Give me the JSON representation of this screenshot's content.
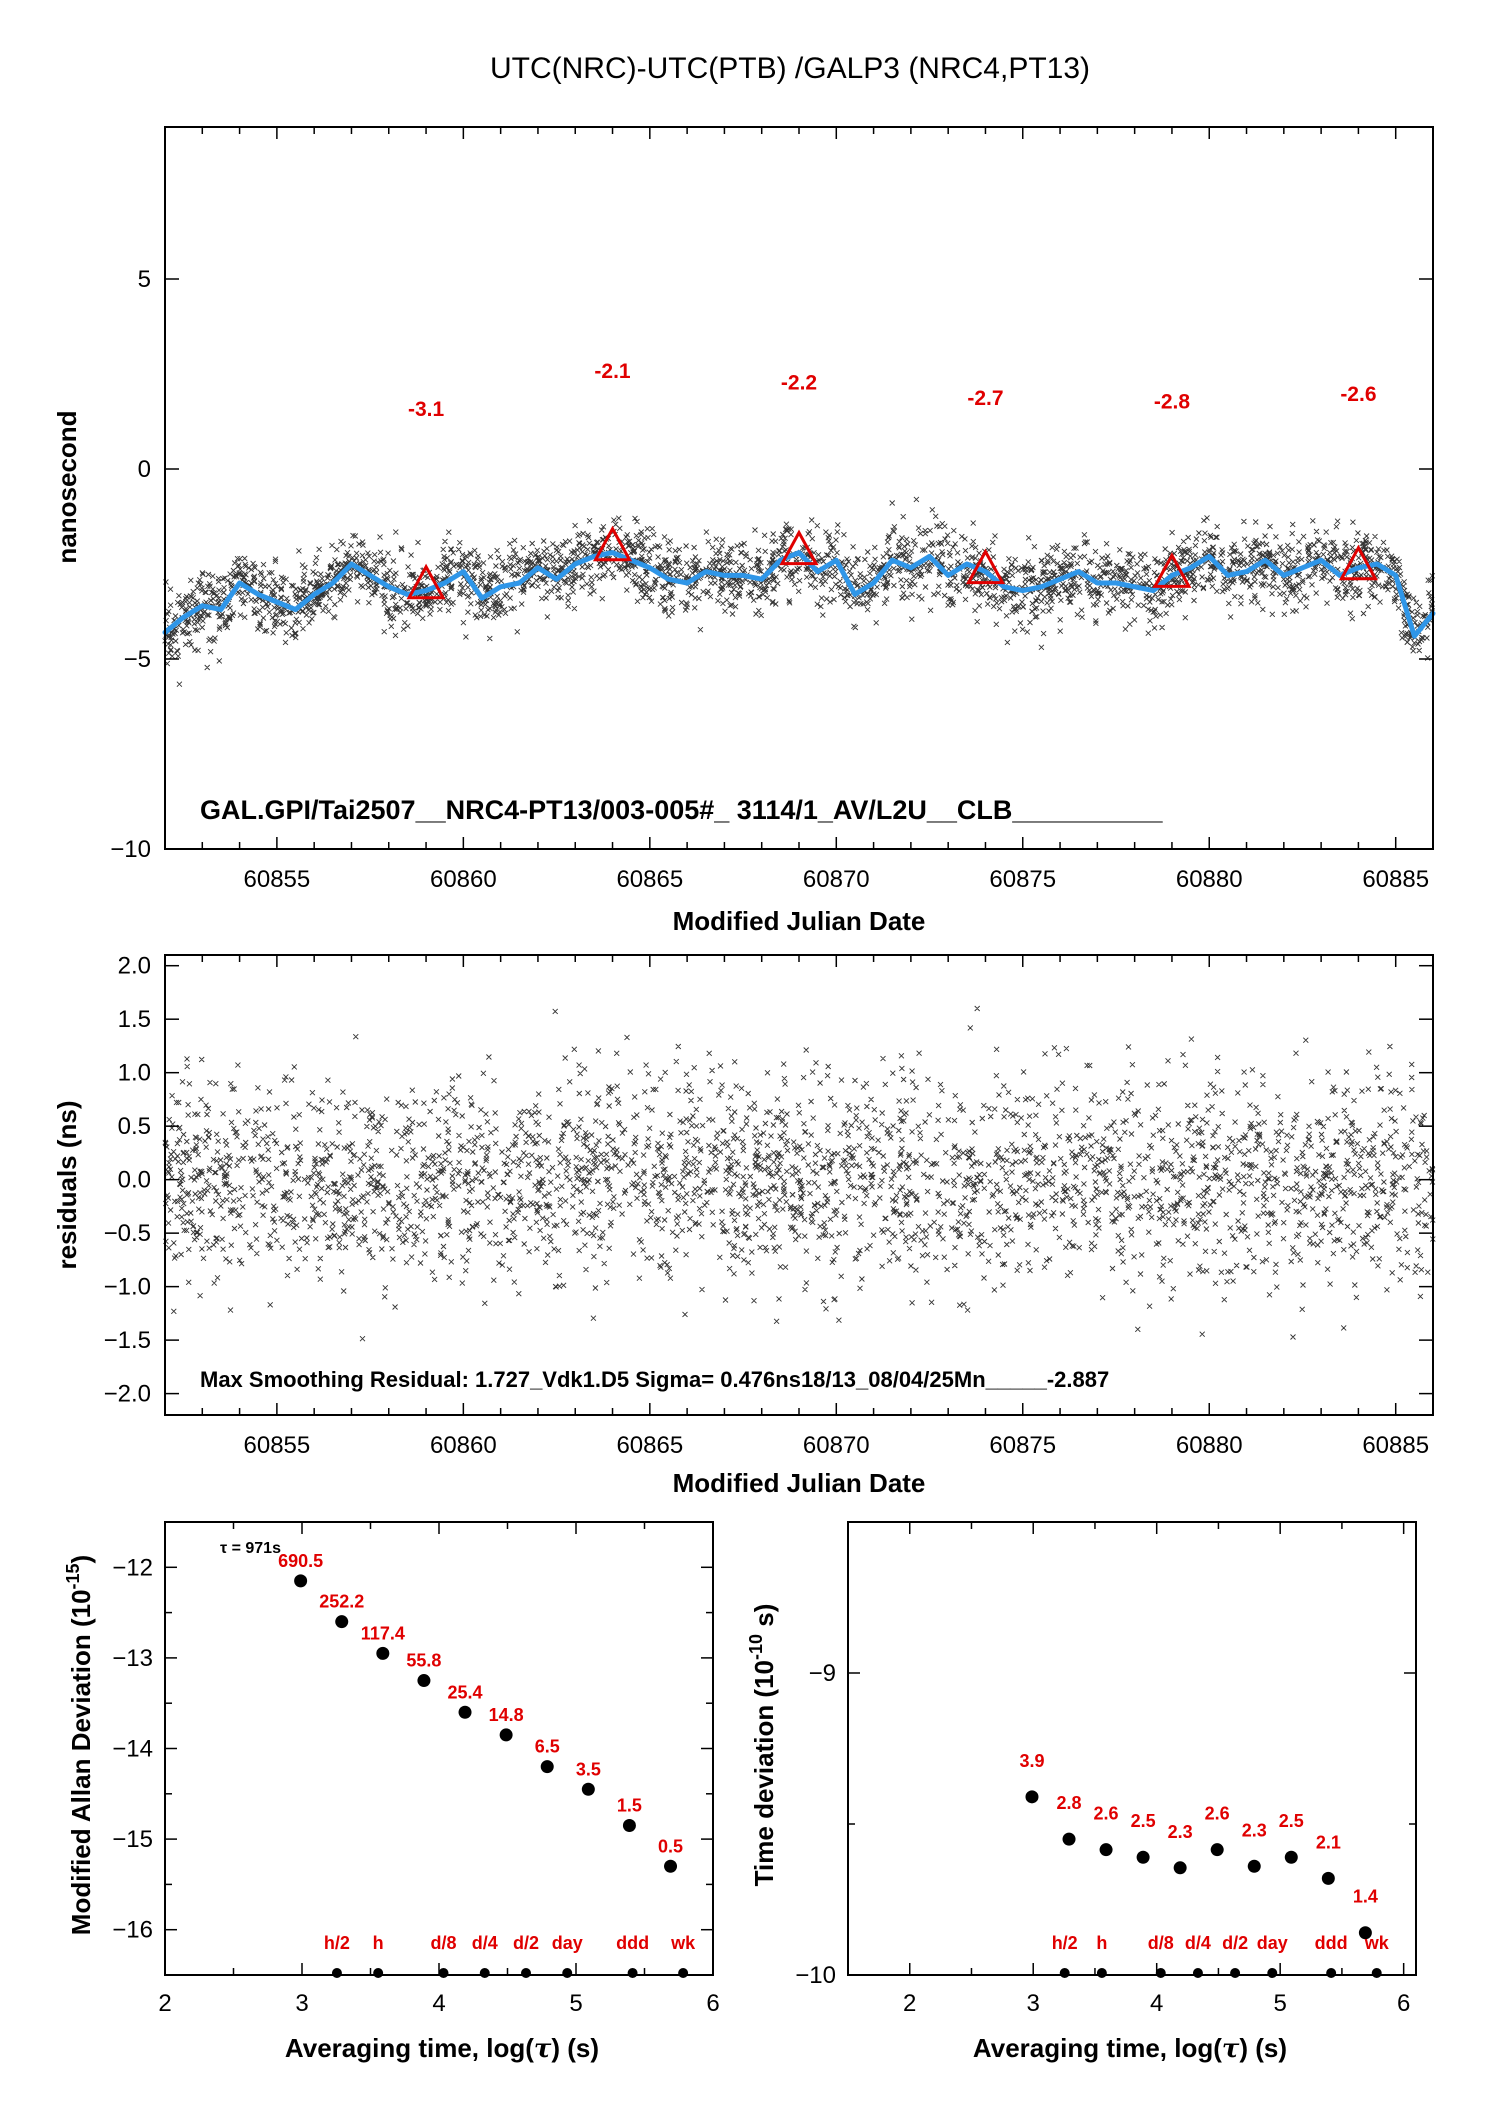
{
  "title": "UTC(NRC)-UTC(PTB)  /GALP3  (NRC4,PT13)",
  "colors": {
    "accent": "#e00000",
    "smooth": "#2f96e8",
    "points": "#000000"
  },
  "chart_data": [
    {
      "type": "scatter",
      "name": "time-series",
      "xlabel": "Modified Julian Date",
      "ylabel": "nanosecond",
      "xlim": [
        60852,
        60886
      ],
      "ylim": [
        -10,
        9
      ],
      "xticks": [
        "60855",
        "60860",
        "60865",
        "60870",
        "60875",
        "60880",
        "60885"
      ],
      "yticks": [
        "5",
        "0",
        "−5",
        "−10"
      ],
      "annotation": "GAL.GPI/Tai2507__NRC4-PT13/003-005#_  3114/1_AV/L2U__CLB__________",
      "scatter_summary": {
        "x_range": [
          60852,
          60886
        ],
        "y_center": -3.0,
        "spread_ns": 0.48
      },
      "smooth_line": {
        "x": [
          60852,
          60852.5,
          60853,
          60853.5,
          60854,
          60854.5,
          60855,
          60855.5,
          60856,
          60856.5,
          60857,
          60857.5,
          60858,
          60858.5,
          60859,
          60859.5,
          60860,
          60860.5,
          60861,
          60861.5,
          60862,
          60862.5,
          60863,
          60863.5,
          60864,
          60864.5,
          60865,
          60865.5,
          60866,
          60866.5,
          60867,
          60867.5,
          60868,
          60868.5,
          60869,
          60869.5,
          60870,
          60870.5,
          60871,
          60871.5,
          60872,
          60872.5,
          60873,
          60873.5,
          60874,
          60874.5,
          60875,
          60875.5,
          60876,
          60876.5,
          60877,
          60877.5,
          60878,
          60878.5,
          60879,
          60879.5,
          60880,
          60880.5,
          60881,
          60881.5,
          60882,
          60882.5,
          60883,
          60883.5,
          60884,
          60884.5,
          60885,
          60885.5,
          60886
        ],
        "y": [
          -4.3,
          -3.9,
          -3.6,
          -3.7,
          -3.0,
          -3.3,
          -3.5,
          -3.7,
          -3.3,
          -3.0,
          -2.5,
          -2.8,
          -3.1,
          -3.3,
          -3.2,
          -3.0,
          -2.7,
          -3.4,
          -3.1,
          -3.0,
          -2.6,
          -2.9,
          -2.5,
          -2.3,
          -2.2,
          -2.4,
          -2.6,
          -2.9,
          -3.0,
          -2.7,
          -2.8,
          -2.8,
          -2.9,
          -2.4,
          -2.2,
          -2.7,
          -2.4,
          -3.3,
          -3.0,
          -2.4,
          -2.6,
          -2.3,
          -2.8,
          -2.5,
          -2.7,
          -3.1,
          -3.2,
          -3.1,
          -2.9,
          -2.7,
          -3.0,
          -3.0,
          -3.1,
          -3.2,
          -2.8,
          -2.6,
          -2.3,
          -2.8,
          -2.7,
          -2.4,
          -2.8,
          -2.6,
          -2.4,
          -2.8,
          -2.6,
          -2.5,
          -2.8,
          -4.4,
          -3.8
        ]
      },
      "markers": [
        {
          "x": 60859,
          "y": -3.1,
          "label": "-3.1",
          "label_y": 1.6
        },
        {
          "x": 60864,
          "y": -2.1,
          "label": "-2.1",
          "label_y": 2.6
        },
        {
          "x": 60869,
          "y": -2.2,
          "label": "-2.2",
          "label_y": 2.3
        },
        {
          "x": 60874,
          "y": -2.7,
          "label": "-2.7",
          "label_y": 1.9
        },
        {
          "x": 60879,
          "y": -2.8,
          "label": "-2.8",
          "label_y": 1.8
        },
        {
          "x": 60884,
          "y": -2.6,
          "label": "-2.6",
          "label_y": 2.0
        }
      ]
    },
    {
      "type": "scatter",
      "name": "residuals",
      "xlabel": "Modified Julian Date",
      "ylabel": "residuals (ns)",
      "xlim": [
        60852,
        60886
      ],
      "ylim": [
        -2.2,
        2.1
      ],
      "xticks": [
        "60855",
        "60860",
        "60865",
        "60870",
        "60875",
        "60880",
        "60885"
      ],
      "yticks": [
        "2.0",
        "1.5",
        "1.0",
        "0.5",
        "0.0",
        "−0.5",
        "−1.0",
        "−1.5",
        "−2.0"
      ],
      "annotation": "Max Smoothing Residual: 1.727_Vdk1.D5  Sigma= 0.476ns18/13_08/04/25Mn_____-2.887",
      "scatter_summary": {
        "x_range": [
          60852,
          60886
        ],
        "y_center": 0.0,
        "sigma": 0.476,
        "max_abs": 1.727
      }
    },
    {
      "type": "scatter",
      "name": "modified-allan-deviation",
      "xlabel_parts": [
        "Averaging time, log(",
        "τ",
        ") (s)"
      ],
      "ylabel_parts": [
        "Modified Allan Deviation (10",
        "-15",
        ")"
      ],
      "xlim": [
        2,
        6
      ],
      "ylim": [
        -16.5,
        -11.5
      ],
      "xticks": [
        "2",
        "3",
        "4",
        "5",
        "6"
      ],
      "yticks": [
        "−12",
        "−13",
        "−14",
        "−15",
        "−16"
      ],
      "tau_note": "τ = 971s",
      "points": [
        {
          "x": 2.99,
          "y": -12.15,
          "label": "690.5"
        },
        {
          "x": 3.29,
          "y": -12.6,
          "label": "252.2"
        },
        {
          "x": 3.59,
          "y": -12.95,
          "label": "117.4"
        },
        {
          "x": 3.89,
          "y": -13.25,
          "label": "55.8"
        },
        {
          "x": 4.19,
          "y": -13.6,
          "label": "25.4"
        },
        {
          "x": 4.49,
          "y": -13.85,
          "label": "14.8"
        },
        {
          "x": 4.79,
          "y": -14.2,
          "label": "6.5"
        },
        {
          "x": 5.09,
          "y": -14.45,
          "label": "3.5"
        },
        {
          "x": 5.39,
          "y": -14.85,
          "label": "1.5"
        },
        {
          "x": 5.69,
          "y": -15.3,
          "label": "0.5"
        }
      ],
      "interval_marks": [
        {
          "x": 3.255,
          "label": "h/2"
        },
        {
          "x": 3.556,
          "label": "h"
        },
        {
          "x": 4.033,
          "label": "d/8"
        },
        {
          "x": 4.334,
          "label": "d/4"
        },
        {
          "x": 4.635,
          "label": "d/2"
        },
        {
          "x": 4.936,
          "label": "day"
        },
        {
          "x": 5.413,
          "label": "ddd"
        },
        {
          "x": 5.782,
          "label": "wk"
        }
      ]
    },
    {
      "type": "scatter",
      "name": "time-deviation",
      "xlabel_parts": [
        "Averaging time, log(",
        "τ",
        ") (s)"
      ],
      "ylabel_parts": [
        "Time deviation (10",
        "-10",
        " s)"
      ],
      "xlim": [
        1.5,
        6.1
      ],
      "ylim": [
        -10,
        -8.5
      ],
      "xticks": [
        "2",
        "3",
        "4",
        "5",
        "6"
      ],
      "yticks": [
        "−9",
        "−10"
      ],
      "points": [
        {
          "x": 2.99,
          "y": -9.41,
          "label": "3.9"
        },
        {
          "x": 3.29,
          "y": -9.55,
          "label": "2.8"
        },
        {
          "x": 3.59,
          "y": -9.585,
          "label": "2.6"
        },
        {
          "x": 3.89,
          "y": -9.61,
          "label": "2.5"
        },
        {
          "x": 4.19,
          "y": -9.645,
          "label": "2.3"
        },
        {
          "x": 4.49,
          "y": -9.585,
          "label": "2.6"
        },
        {
          "x": 4.79,
          "y": -9.64,
          "label": "2.3"
        },
        {
          "x": 5.09,
          "y": -9.61,
          "label": "2.5"
        },
        {
          "x": 5.39,
          "y": -9.68,
          "label": "2.1"
        },
        {
          "x": 5.69,
          "y": -9.86,
          "label": "1.4"
        }
      ],
      "interval_marks": [
        {
          "x": 3.255,
          "label": "h/2"
        },
        {
          "x": 3.556,
          "label": "h"
        },
        {
          "x": 4.033,
          "label": "d/8"
        },
        {
          "x": 4.334,
          "label": "d/4"
        },
        {
          "x": 4.635,
          "label": "d/2"
        },
        {
          "x": 4.936,
          "label": "day"
        },
        {
          "x": 5.413,
          "label": "ddd"
        },
        {
          "x": 5.782,
          "label": "wk"
        }
      ]
    }
  ]
}
